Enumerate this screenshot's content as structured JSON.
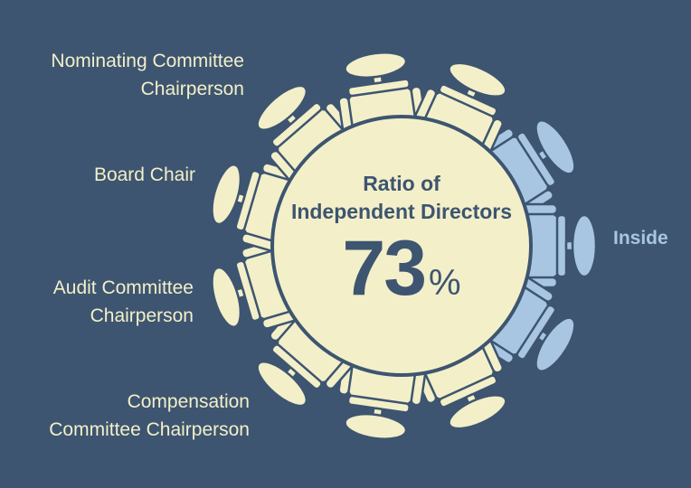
{
  "table": {
    "title_line1": "Ratio of",
    "title_line2": "Independent Directors",
    "ratio_value": "73",
    "ratio_unit": "%",
    "ratio_fraction": 0.73
  },
  "labels": {
    "nominating_line1": "Nominating Committee",
    "nominating_line2": "Chairperson",
    "board_chair": "Board Chair",
    "audit_line1": "Audit Committee",
    "audit_line2": "Chairperson",
    "compensation_line1": "Compensation",
    "compensation_line2": "Committee Chairperson",
    "inside": "Inside"
  },
  "seats": {
    "independent": 8,
    "inside": 3
  },
  "colors": {
    "background": "#3d5570",
    "independent_seat": "#f3efc9",
    "inside_seat": "#a8c6e2",
    "text_dark": "#3d5570"
  }
}
